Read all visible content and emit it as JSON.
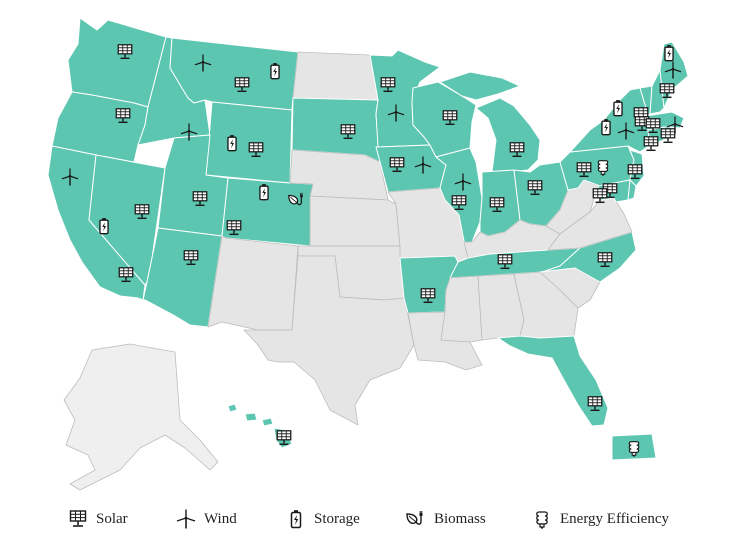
{
  "colors": {
    "active": "#5cc6b0",
    "inactive": "#e5e5e5",
    "border": "#ffffff",
    "outline": "#bdbdbd",
    "alaska": "#efefef",
    "icon": "#1a1a1a"
  },
  "legend": [
    {
      "icon": "solar-icon",
      "label": "Solar"
    },
    {
      "icon": "wind-icon",
      "label": "Wind"
    },
    {
      "icon": "storage-icon",
      "label": "Storage"
    },
    {
      "icon": "biomass-icon",
      "label": "Biomass"
    },
    {
      "icon": "energy-efficiency-icon",
      "label": "Energy Efficiency"
    }
  ],
  "states": [
    {
      "name": "WA",
      "active": true
    },
    {
      "name": "OR",
      "active": true
    },
    {
      "name": "CA",
      "active": true
    },
    {
      "name": "NV",
      "active": true
    },
    {
      "name": "ID",
      "active": true
    },
    {
      "name": "MT",
      "active": true
    },
    {
      "name": "WY",
      "active": true
    },
    {
      "name": "UT",
      "active": true
    },
    {
      "name": "AZ",
      "active": true
    },
    {
      "name": "CO",
      "active": true
    },
    {
      "name": "NM",
      "active": false
    },
    {
      "name": "ND",
      "active": false
    },
    {
      "name": "SD",
      "active": true
    },
    {
      "name": "NE",
      "active": false
    },
    {
      "name": "KS",
      "active": false
    },
    {
      "name": "OK",
      "active": false
    },
    {
      "name": "TX",
      "active": false
    },
    {
      "name": "MN",
      "active": true
    },
    {
      "name": "IA",
      "active": true
    },
    {
      "name": "MO",
      "active": false
    },
    {
      "name": "AR",
      "active": true
    },
    {
      "name": "LA",
      "active": false
    },
    {
      "name": "WI",
      "active": true
    },
    {
      "name": "IL",
      "active": true
    },
    {
      "name": "MI",
      "active": true
    },
    {
      "name": "IN",
      "active": true
    },
    {
      "name": "OH",
      "active": true
    },
    {
      "name": "KY",
      "active": false
    },
    {
      "name": "TN",
      "active": true
    },
    {
      "name": "MS",
      "active": false
    },
    {
      "name": "AL",
      "active": false
    },
    {
      "name": "GA",
      "active": false
    },
    {
      "name": "FL",
      "active": true
    },
    {
      "name": "SC",
      "active": false
    },
    {
      "name": "NC",
      "active": true
    },
    {
      "name": "VA",
      "active": false
    },
    {
      "name": "WV",
      "active": false
    },
    {
      "name": "PA",
      "active": true
    },
    {
      "name": "NY",
      "active": true
    },
    {
      "name": "NJ",
      "active": true
    },
    {
      "name": "MD",
      "active": true
    },
    {
      "name": "DE",
      "active": true
    },
    {
      "name": "CT",
      "active": true
    },
    {
      "name": "RI",
      "active": true
    },
    {
      "name": "MA",
      "active": true
    },
    {
      "name": "VT",
      "active": true
    },
    {
      "name": "NH",
      "active": true
    },
    {
      "name": "ME",
      "active": true
    },
    {
      "name": "AK",
      "active": false
    },
    {
      "name": "HI",
      "active": true
    },
    {
      "name": "PR",
      "active": true
    }
  ],
  "markers": {
    "WA": [
      "solar"
    ],
    "OR": [
      "solar"
    ],
    "CA": [
      "wind",
      "storage",
      "solar"
    ],
    "NV": [
      "solar"
    ],
    "ID": [
      "wind"
    ],
    "MT": [
      "wind",
      "solar",
      "storage"
    ],
    "WY": [
      "storage",
      "solar"
    ],
    "UT": [
      "solar"
    ],
    "AZ": [
      "solar"
    ],
    "CO": [
      "storage",
      "biomass",
      "solar"
    ],
    "SD": [
      "solar"
    ],
    "MN": [
      "solar",
      "wind"
    ],
    "IA": [
      "solar",
      "wind"
    ],
    "WI": [
      "solar"
    ],
    "IL": [
      "wind",
      "solar"
    ],
    "MI": [
      "solar"
    ],
    "IN": [
      "solar"
    ],
    "OH": [
      "solar"
    ],
    "PA": [
      "solar",
      "energy-efficiency"
    ],
    "NY": [
      "storage",
      "wind",
      "solar"
    ],
    "NJ": [
      "solar"
    ],
    "MD": [
      "solar"
    ],
    "DE": [
      "solar"
    ],
    "VT": [
      "storage"
    ],
    "NH": [
      "solar"
    ],
    "ME": [
      "storage",
      "wind",
      "solar"
    ],
    "MA": [
      "solar",
      "wind"
    ],
    "CT": [
      "solar"
    ],
    "RI": [
      "solar"
    ],
    "TN": [
      "solar"
    ],
    "NC": [
      "solar"
    ],
    "AR": [
      "solar"
    ],
    "FL": [
      "solar"
    ],
    "HI": [
      "solar"
    ],
    "PR": [
      "energy-efficiency"
    ]
  }
}
